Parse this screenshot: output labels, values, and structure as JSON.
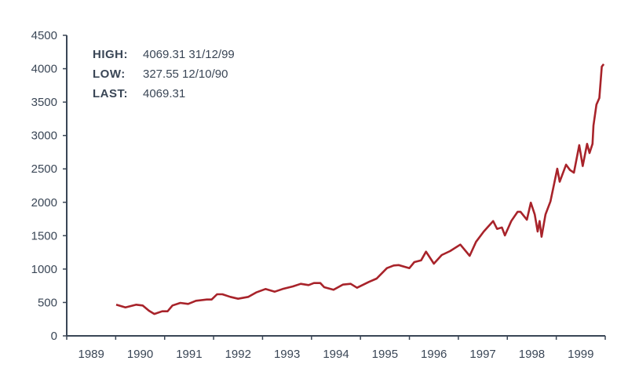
{
  "chart_data": {
    "type": "line",
    "title": "",
    "xlabel": "",
    "ylabel": "",
    "xlim": [
      1989,
      2000
    ],
    "ylim": [
      0,
      4500
    ],
    "y_ticks": [
      0,
      500,
      1000,
      1500,
      2000,
      2500,
      3000,
      3500,
      4000,
      4500
    ],
    "x_tick_labels": [
      "1989",
      "1990",
      "1991",
      "1992",
      "1993",
      "1994",
      "1995",
      "1996",
      "1997",
      "1998",
      "1999"
    ],
    "grid": false,
    "line_color": "#a8232a",
    "axis_color": "#3a4656",
    "annotations": [
      {
        "label": "HIGH:",
        "value": "4069.31 31/12/99"
      },
      {
        "label": "LOW:",
        "value": "327.55 12/10/90"
      },
      {
        "label": "LAST:",
        "value": "4069.31"
      }
    ],
    "series": [
      {
        "points": [
          [
            1990.01,
            467
          ],
          [
            1990.2,
            427
          ],
          [
            1990.42,
            467
          ],
          [
            1990.55,
            455
          ],
          [
            1990.68,
            376
          ],
          [
            1990.79,
            327.55
          ],
          [
            1990.95,
            368
          ],
          [
            1991.06,
            368
          ],
          [
            1991.16,
            455
          ],
          [
            1991.32,
            494
          ],
          [
            1991.48,
            478
          ],
          [
            1991.64,
            525
          ],
          [
            1991.86,
            544
          ],
          [
            1991.96,
            544
          ],
          [
            1992.07,
            623
          ],
          [
            1992.18,
            623
          ],
          [
            1992.34,
            584
          ],
          [
            1992.5,
            556
          ],
          [
            1992.71,
            584
          ],
          [
            1992.87,
            650
          ],
          [
            1993.06,
            701
          ],
          [
            1993.25,
            662
          ],
          [
            1993.41,
            701
          ],
          [
            1993.62,
            740
          ],
          [
            1993.78,
            779
          ],
          [
            1993.94,
            760
          ],
          [
            1994.05,
            791
          ],
          [
            1994.18,
            791
          ],
          [
            1994.26,
            728
          ],
          [
            1994.45,
            690
          ],
          [
            1994.64,
            767
          ],
          [
            1994.8,
            779
          ],
          [
            1994.93,
            720
          ],
          [
            1995.17,
            807
          ],
          [
            1995.33,
            858
          ],
          [
            1995.54,
            1014
          ],
          [
            1995.68,
            1054
          ],
          [
            1995.78,
            1060
          ],
          [
            1996.0,
            1014
          ],
          [
            1996.1,
            1105
          ],
          [
            1996.24,
            1132
          ],
          [
            1996.34,
            1261
          ],
          [
            1996.5,
            1081
          ],
          [
            1996.66,
            1210
          ],
          [
            1996.83,
            1269
          ],
          [
            1997.04,
            1367
          ],
          [
            1997.23,
            1199
          ],
          [
            1997.36,
            1407
          ],
          [
            1997.52,
            1563
          ],
          [
            1997.71,
            1719
          ],
          [
            1997.79,
            1602
          ],
          [
            1997.89,
            1622
          ],
          [
            1997.95,
            1504
          ],
          [
            1998.08,
            1719
          ],
          [
            1998.21,
            1857
          ],
          [
            1998.27,
            1857
          ],
          [
            1998.4,
            1739
          ],
          [
            1998.48,
            1994
          ],
          [
            1998.56,
            1818
          ],
          [
            1998.62,
            1563
          ],
          [
            1998.66,
            1719
          ],
          [
            1998.7,
            1484
          ],
          [
            1998.78,
            1818
          ],
          [
            1998.88,
            2013
          ],
          [
            1998.96,
            2288
          ],
          [
            1999.02,
            2503
          ],
          [
            1999.07,
            2307
          ],
          [
            1999.2,
            2562
          ],
          [
            1999.28,
            2483
          ],
          [
            1999.36,
            2444
          ],
          [
            1999.47,
            2855
          ],
          [
            1999.54,
            2542
          ],
          [
            1999.63,
            2875
          ],
          [
            1999.68,
            2738
          ],
          [
            1999.74,
            2875
          ],
          [
            1999.76,
            3149
          ],
          [
            1999.82,
            3463
          ],
          [
            1999.88,
            3561
          ],
          [
            1999.93,
            4031
          ],
          [
            1999.97,
            4069.31
          ]
        ]
      }
    ]
  }
}
